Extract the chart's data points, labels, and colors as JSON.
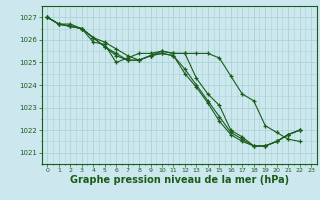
{
  "bg_color": "#cce8ee",
  "line_color": "#1a5c1a",
  "grid_color": "#aad4d4",
  "xlabel": "Graphe pression niveau de la mer (hPa)",
  "xlabel_fontsize": 7.0,
  "ylim": [
    1020.5,
    1027.5
  ],
  "xlim": [
    -0.5,
    23.5
  ],
  "yticks": [
    1021,
    1022,
    1023,
    1024,
    1025,
    1026,
    1027
  ],
  "xticks": [
    0,
    1,
    2,
    3,
    4,
    5,
    6,
    7,
    8,
    9,
    10,
    11,
    12,
    13,
    14,
    15,
    16,
    17,
    18,
    19,
    20,
    21,
    22,
    23
  ],
  "series": [
    [
      1027.0,
      1026.7,
      1026.7,
      1026.5,
      1025.9,
      1025.8,
      1025.0,
      1025.2,
      1025.4,
      1025.4,
      1025.5,
      1025.4,
      1025.4,
      1024.3,
      1023.6,
      1023.1,
      1022.0,
      1021.7,
      1021.3,
      1021.3,
      1021.5,
      1021.8,
      1022.0,
      null
    ],
    [
      1027.0,
      1026.7,
      1026.6,
      1026.5,
      1026.1,
      1025.7,
      1025.3,
      1025.1,
      1025.1,
      1025.3,
      1025.4,
      1025.3,
      1024.7,
      1024.0,
      1023.3,
      1022.6,
      1021.9,
      1021.6,
      1021.3,
      1021.3,
      1021.5,
      1021.8,
      1022.0,
      null
    ],
    [
      1027.0,
      1026.7,
      1026.6,
      1026.5,
      1026.1,
      1025.7,
      1025.4,
      1025.1,
      1025.1,
      1025.3,
      1025.4,
      1025.3,
      1024.5,
      1023.9,
      1023.2,
      1022.4,
      1021.8,
      1021.5,
      1021.3,
      1021.3,
      1021.5,
      1021.8,
      1022.0,
      null
    ],
    [
      1027.0,
      1026.7,
      1026.6,
      1026.5,
      1026.1,
      1025.9,
      1025.6,
      1025.3,
      1025.1,
      1025.3,
      1025.5,
      1025.4,
      1025.4,
      1025.4,
      1025.4,
      1025.2,
      1024.4,
      1023.6,
      1023.3,
      1022.2,
      1021.9,
      1021.6,
      1021.5,
      null
    ]
  ]
}
